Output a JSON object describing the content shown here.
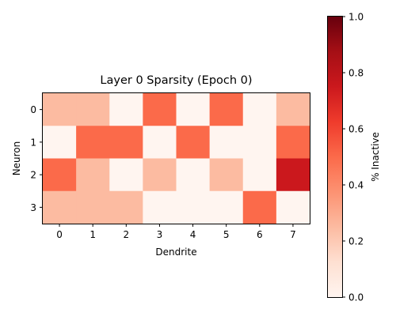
{
  "chart_data": {
    "type": "heatmap",
    "title": "Layer 0 Sparsity (Epoch 0)",
    "xlabel": "Dendrite",
    "ylabel": "Neuron",
    "x_categories": [
      "0",
      "1",
      "2",
      "3",
      "4",
      "5",
      "6",
      "7"
    ],
    "y_categories": [
      "0",
      "1",
      "2",
      "3"
    ],
    "values": [
      [
        0.25,
        0.25,
        0.0,
        0.5,
        0.0,
        0.5,
        0.0,
        0.25
      ],
      [
        0.0,
        0.5,
        0.5,
        0.0,
        0.5,
        0.0,
        0.0,
        0.5
      ],
      [
        0.5,
        0.25,
        0.0,
        0.25,
        0.0,
        0.25,
        0.0,
        0.75
      ],
      [
        0.25,
        0.25,
        0.25,
        0.0,
        0.0,
        0.0,
        0.5,
        0.0
      ]
    ],
    "colorbar": {
      "label": "% Inactive",
      "range": [
        0.0,
        1.0
      ],
      "ticks": [
        "0.0",
        "0.2",
        "0.4",
        "0.6",
        "0.8",
        "1.0"
      ],
      "colormap": "Reds"
    },
    "grid": false
  }
}
